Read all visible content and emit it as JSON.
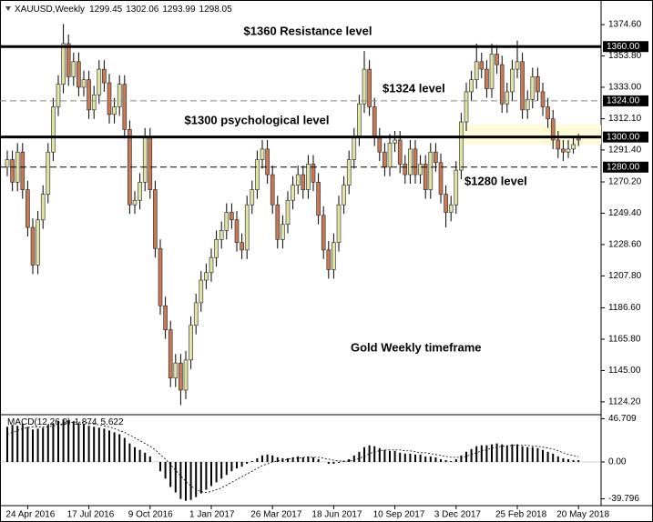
{
  "chart_data": {
    "type": "candlestick",
    "symbol": "XAUUSD,Weekly",
    "categories": [
      null,
      null,
      null,
      null,
      "24 Apr 2016",
      null,
      null,
      null,
      null,
      null,
      null,
      null,
      null,
      null,
      null,
      null,
      "17 Jul 2016",
      null,
      null,
      null,
      null,
      null,
      null,
      null,
      null,
      null,
      null,
      null,
      "9 Oct 2016",
      null,
      null,
      null,
      null,
      null,
      null,
      null,
      null,
      null,
      null,
      null,
      "1 Jan 2017",
      null,
      null,
      null,
      null,
      null,
      null,
      null,
      null,
      null,
      null,
      null,
      "26 Mar 2017",
      null,
      null,
      null,
      null,
      null,
      null,
      null,
      null,
      null,
      null,
      null,
      "18 Jun 2017",
      null,
      null,
      null,
      null,
      null,
      null,
      null,
      null,
      null,
      null,
      null,
      "10 Sep 2017",
      null,
      null,
      null,
      null,
      null,
      null,
      null,
      null,
      null,
      null,
      null,
      "3 Dec 2017",
      null,
      null,
      null,
      null,
      null,
      null,
      null,
      null,
      null,
      null,
      null,
      "25 Feb 2018",
      null,
      null,
      null,
      null,
      null,
      null,
      null,
      null,
      null,
      null,
      null,
      "20 May 2018"
    ],
    "ohlc": [
      [
        1280,
        1291,
        1274,
        1285
      ],
      [
        1285,
        1291,
        1264,
        1270
      ],
      [
        1270,
        1296,
        1264,
        1290
      ],
      [
        1290,
        1296,
        1259,
        1265
      ],
      [
        1265,
        1271,
        1234,
        1240
      ],
      [
        1240,
        1246,
        1209,
        1215
      ],
      [
        1215,
        1251,
        1209,
        1245
      ],
      [
        1245,
        1268,
        1239,
        1262
      ],
      [
        1262,
        1296,
        1256,
        1290
      ],
      [
        1290,
        1326,
        1284,
        1320
      ],
      [
        1320,
        1341,
        1314,
        1335
      ],
      [
        1335,
        1375,
        1329,
        1362
      ],
      [
        1362,
        1368,
        1334,
        1340
      ],
      [
        1340,
        1356,
        1334,
        1350
      ],
      [
        1350,
        1356,
        1327,
        1333
      ],
      [
        1333,
        1344,
        1327,
        1338
      ],
      [
        1338,
        1344,
        1312,
        1318
      ],
      [
        1318,
        1334,
        1312,
        1328
      ],
      [
        1328,
        1351,
        1322,
        1345
      ],
      [
        1345,
        1351,
        1330,
        1336
      ],
      [
        1336,
        1342,
        1309,
        1315
      ],
      [
        1315,
        1326,
        1309,
        1320
      ],
      [
        1320,
        1341,
        1314,
        1335
      ],
      [
        1335,
        1341,
        1299,
        1305
      ],
      [
        1305,
        1311,
        1249,
        1255
      ],
      [
        1255,
        1264,
        1249,
        1258
      ],
      [
        1258,
        1276,
        1252,
        1270
      ],
      [
        1270,
        1306,
        1264,
        1300
      ],
      [
        1300,
        1306,
        1259,
        1265
      ],
      [
        1265,
        1271,
        1220,
        1226
      ],
      [
        1226,
        1232,
        1182,
        1188
      ],
      [
        1188,
        1194,
        1166,
        1172
      ],
      [
        1172,
        1178,
        1134,
        1140
      ],
      [
        1140,
        1156,
        1134,
        1150
      ],
      [
        1150,
        1156,
        1122,
        1132
      ],
      [
        1132,
        1158,
        1126,
        1152
      ],
      [
        1152,
        1181,
        1146,
        1175
      ],
      [
        1175,
        1196,
        1169,
        1190
      ],
      [
        1190,
        1211,
        1184,
        1205
      ],
      [
        1205,
        1216,
        1199,
        1210
      ],
      [
        1210,
        1226,
        1204,
        1220
      ],
      [
        1220,
        1238,
        1214,
        1232
      ],
      [
        1232,
        1244,
        1226,
        1238
      ],
      [
        1238,
        1256,
        1232,
        1250
      ],
      [
        1250,
        1256,
        1239,
        1245
      ],
      [
        1245,
        1251,
        1224,
        1230
      ],
      [
        1230,
        1236,
        1219,
        1225
      ],
      [
        1225,
        1261,
        1219,
        1255
      ],
      [
        1255,
        1271,
        1249,
        1265
      ],
      [
        1265,
        1291,
        1259,
        1285
      ],
      [
        1285,
        1298,
        1279,
        1292
      ],
      [
        1292,
        1298,
        1269,
        1275
      ],
      [
        1275,
        1281,
        1249,
        1255
      ],
      [
        1255,
        1261,
        1226,
        1232
      ],
      [
        1232,
        1248,
        1226,
        1242
      ],
      [
        1242,
        1264,
        1236,
        1258
      ],
      [
        1258,
        1274,
        1252,
        1268
      ],
      [
        1268,
        1281,
        1262,
        1275
      ],
      [
        1275,
        1281,
        1259,
        1265
      ],
      [
        1265,
        1288,
        1259,
        1282
      ],
      [
        1282,
        1288,
        1264,
        1270
      ],
      [
        1270,
        1276,
        1242,
        1248
      ],
      [
        1248,
        1254,
        1219,
        1225
      ],
      [
        1225,
        1231,
        1206,
        1212
      ],
      [
        1212,
        1236,
        1206,
        1230
      ],
      [
        1230,
        1261,
        1224,
        1255
      ],
      [
        1255,
        1274,
        1249,
        1268
      ],
      [
        1268,
        1291,
        1262,
        1285
      ],
      [
        1285,
        1306,
        1279,
        1300
      ],
      [
        1300,
        1328,
        1294,
        1322
      ],
      [
        1322,
        1357,
        1316,
        1345
      ],
      [
        1345,
        1351,
        1314,
        1320
      ],
      [
        1320,
        1326,
        1294,
        1300
      ],
      [
        1300,
        1306,
        1284,
        1290
      ],
      [
        1290,
        1296,
        1274,
        1280
      ],
      [
        1280,
        1302,
        1274,
        1296
      ],
      [
        1296,
        1304,
        1290,
        1298
      ],
      [
        1298,
        1304,
        1276,
        1282
      ],
      [
        1282,
        1288,
        1269,
        1275
      ],
      [
        1275,
        1298,
        1269,
        1292
      ],
      [
        1292,
        1298,
        1269,
        1275
      ],
      [
        1275,
        1288,
        1269,
        1282
      ],
      [
        1282,
        1288,
        1259,
        1265
      ],
      [
        1265,
        1296,
        1259,
        1290
      ],
      [
        1290,
        1296,
        1277,
        1283
      ],
      [
        1283,
        1289,
        1256,
        1262
      ],
      [
        1262,
        1268,
        1240,
        1250
      ],
      [
        1250,
        1261,
        1244,
        1255
      ],
      [
        1255,
        1284,
        1249,
        1278
      ],
      [
        1278,
        1316,
        1272,
        1310
      ],
      [
        1310,
        1336,
        1304,
        1330
      ],
      [
        1330,
        1344,
        1324,
        1338
      ],
      [
        1338,
        1362,
        1332,
        1350
      ],
      [
        1350,
        1356,
        1339,
        1345
      ],
      [
        1345,
        1351,
        1326,
        1332
      ],
      [
        1332,
        1362,
        1326,
        1355
      ],
      [
        1355,
        1361,
        1342,
        1348
      ],
      [
        1348,
        1354,
        1316,
        1322
      ],
      [
        1322,
        1336,
        1316,
        1330
      ],
      [
        1330,
        1351,
        1324,
        1345
      ],
      [
        1345,
        1364,
        1339,
        1350
      ],
      [
        1350,
        1356,
        1312,
        1318
      ],
      [
        1318,
        1331,
        1312,
        1325
      ],
      [
        1325,
        1346,
        1319,
        1340
      ],
      [
        1340,
        1346,
        1324,
        1330
      ],
      [
        1330,
        1336,
        1314,
        1320
      ],
      [
        1320,
        1326,
        1306,
        1312
      ],
      [
        1312,
        1318,
        1292,
        1298
      ],
      [
        1298,
        1304,
        1286,
        1292
      ],
      [
        1292,
        1298,
        1284,
        1290
      ],
      [
        1290,
        1298,
        1286,
        1292
      ],
      [
        1292,
        1300,
        1289,
        1295
      ],
      [
        1299.45,
        1302.06,
        1293.99,
        1298.05
      ]
    ],
    "up_color": "#e2e4a6",
    "down_color": "#c77a55",
    "ylim": [
      1116.3,
      1386.1
    ],
    "yticks": [
      {
        "value": 1374.6,
        "label": "1374.60"
      },
      {
        "value": 1353.8,
        "label": "1353.80"
      },
      {
        "value": 1333,
        "label": "1333.00"
      },
      {
        "value": 1312.1,
        "label": "1312.10"
      },
      {
        "value": 1291.4,
        "label": "1291.40"
      },
      {
        "value": 1270.2,
        "label": "1270.20"
      },
      {
        "value": 1249.4,
        "label": "1249.40"
      },
      {
        "value": 1228.6,
        "label": "1228.60"
      },
      {
        "value": 1207.8,
        "label": "1207.80"
      },
      {
        "value": 1186.6,
        "label": "1186.60"
      },
      {
        "value": 1165.8,
        "label": "1165.80"
      },
      {
        "value": 1145,
        "label": "1145.00"
      },
      {
        "value": 1124.2,
        "label": "1124.20"
      }
    ],
    "levels": [
      {
        "value": 1360,
        "label": "1360.00",
        "style": "solid"
      },
      {
        "value": 1324,
        "label": "1324.00",
        "style": "dashed-gray"
      },
      {
        "value": 1300,
        "label": "1300.00",
        "style": "solid"
      },
      {
        "value": 1280,
        "label": "1280.00",
        "style": "dashed"
      }
    ],
    "highlight_zone": {
      "start": 89,
      "low": 1295,
      "high": 1308,
      "color": "#fffbd6"
    },
    "annotations": [
      "$1360 Resistance level",
      "$1324 level",
      "$1300 psychological level",
      "$1280 level",
      "Gold Weekly timeframe"
    ],
    "macd": {
      "name": "MACD(12,26,9)",
      "histogram": [
        38,
        40,
        39,
        41,
        38,
        35,
        36,
        37,
        40,
        42,
        44,
        46,
        45,
        44,
        42,
        41,
        39,
        38,
        37,
        36,
        34,
        32,
        30,
        26,
        20,
        16,
        13,
        10,
        6,
        0,
        -10,
        -18,
        -27,
        -33,
        -40,
        -42,
        -41,
        -38,
        -34,
        -30,
        -26,
        -22,
        -18,
        -14,
        -10,
        -7,
        -5,
        -2,
        1,
        4,
        7,
        8,
        7,
        5,
        4,
        4,
        5,
        6,
        5,
        6,
        5,
        3,
        0,
        -2,
        -2,
        -1,
        1,
        3,
        7,
        11,
        16,
        18,
        17,
        15,
        13,
        12,
        12,
        10,
        9,
        9,
        8,
        8,
        6,
        6,
        5,
        3,
        2,
        1,
        3,
        7,
        11,
        14,
        17,
        18,
        18,
        19,
        20,
        19,
        18,
        19,
        19,
        17,
        16,
        16,
        15,
        13,
        11,
        9,
        6,
        4,
        3,
        2,
        1.874
      ],
      "signal": [
        30,
        32,
        34,
        36,
        37,
        38,
        38,
        38,
        38,
        39,
        40,
        41,
        42,
        43,
        43,
        43,
        42,
        41,
        40,
        39,
        38,
        36,
        34,
        32,
        29,
        26,
        23,
        20,
        17,
        13,
        8,
        3,
        -3,
        -9,
        -15,
        -21,
        -26,
        -30,
        -32,
        -33,
        -32,
        -30,
        -28,
        -25,
        -22,
        -19,
        -16,
        -13,
        -10,
        -7,
        -4,
        -2,
        0,
        1,
        2,
        3,
        4,
        4,
        5,
        5,
        5,
        5,
        4,
        3,
        2,
        1,
        1,
        1,
        2,
        4,
        6,
        9,
        11,
        12,
        13,
        13,
        13,
        13,
        12,
        12,
        11,
        10,
        10,
        9,
        8,
        7,
        6,
        5,
        5,
        5,
        6,
        8,
        10,
        12,
        13,
        15,
        16,
        17,
        17,
        18,
        18,
        18,
        18,
        17,
        17,
        16,
        15,
        14,
        12,
        10,
        8,
        7,
        5.622
      ],
      "ylim": [
        -47.2,
        49.1
      ],
      "yticks": [
        46.709,
        {
          "value": 0,
          "label": "0.00"
        },
        -39.796
      ]
    }
  }
}
